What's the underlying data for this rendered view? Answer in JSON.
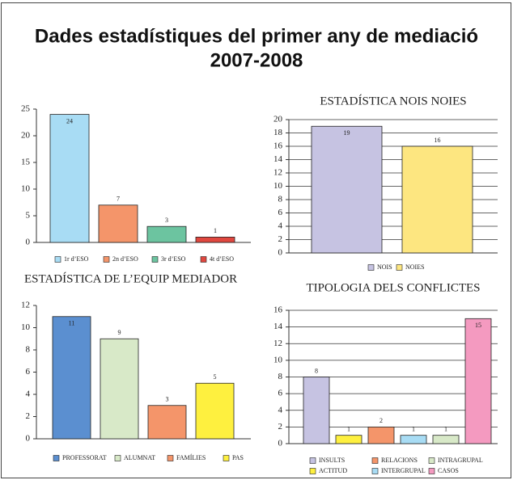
{
  "title": [
    "Dades estadístiques del primer any de mediació",
    "2007-2008"
  ],
  "chart_data": [
    {
      "type": "bar",
      "categories": [
        "1r d’ESO",
        "2n d’ESO",
        "3r d’ESO",
        "4t d’ESO"
      ],
      "values": [
        24,
        7,
        3,
        1
      ],
      "colors": [
        "#a8dcf4",
        "#f4956a",
        "#6cc4a0",
        "#e0473f"
      ],
      "ylim": [
        0,
        25
      ],
      "yticks": [
        0,
        5,
        10,
        15,
        20,
        25
      ],
      "grid": false
    },
    {
      "type": "bar",
      "title": "ESTADÍSTICA NOIS NOIES",
      "categories": [
        "NOIS",
        "NOIES"
      ],
      "values": [
        19,
        16
      ],
      "colors": [
        "#c6c3e2",
        "#fde680"
      ],
      "ylim": [
        0,
        20
      ],
      "yticks": [
        0,
        2,
        4,
        6,
        8,
        10,
        12,
        14,
        16,
        18,
        20
      ],
      "grid": true
    },
    {
      "type": "bar",
      "title": "ESTADÍSTICA DE L’EQUIP MEDIADOR",
      "categories": [
        "PROFESSORAT",
        "ALUMNAT",
        "FAMÍLIES",
        "PAS"
      ],
      "values": [
        11,
        9,
        3,
        5
      ],
      "colors": [
        "#5b8fd0",
        "#d8e9c8",
        "#f4956a",
        "#fef03f"
      ],
      "ylim": [
        0,
        12
      ],
      "yticks": [
        0,
        2,
        4,
        6,
        8,
        10,
        12
      ],
      "grid": false
    },
    {
      "type": "bar",
      "title": "TIPOLOGIA DELS CONFLICTES",
      "categories": [
        "INSULTS",
        "ACTITUD",
        "RELACIONS",
        "INTERGRUPAL",
        "INTRAGRUPAL",
        "CASOS"
      ],
      "values": [
        8,
        1,
        2,
        1,
        1,
        15
      ],
      "colors": [
        "#c6c3e2",
        "#fef03f",
        "#f4956a",
        "#a8dcf4",
        "#d8e9c8",
        "#f49ac0"
      ],
      "ylim": [
        0,
        16
      ],
      "yticks": [
        0,
        2,
        4,
        6,
        8,
        10,
        12,
        14,
        16
      ],
      "grid": true
    }
  ]
}
